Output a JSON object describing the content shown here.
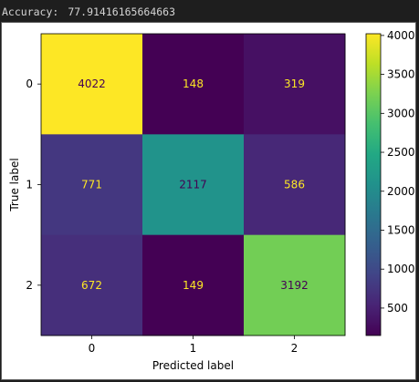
{
  "output": {
    "label": "Accuracy:",
    "value": "77.91416165664663"
  },
  "chart_data": {
    "type": "heatmap",
    "xlabel": "Predicted label",
    "ylabel": "True label",
    "x_ticks": [
      "0",
      "1",
      "2"
    ],
    "y_ticks": [
      "0",
      "1",
      "2"
    ],
    "matrix": [
      [
        4022,
        148,
        319
      ],
      [
        771,
        2117,
        586
      ],
      [
        672,
        149,
        3192
      ]
    ],
    "colorbar": {
      "min": 148,
      "max": 4022,
      "ticks": [
        500,
        1000,
        1500,
        2000,
        2500,
        3000,
        3500,
        4000
      ],
      "colormap": "viridis"
    },
    "text_colors": {
      "on_dark": "#fde725",
      "on_light": "#440154"
    }
  }
}
